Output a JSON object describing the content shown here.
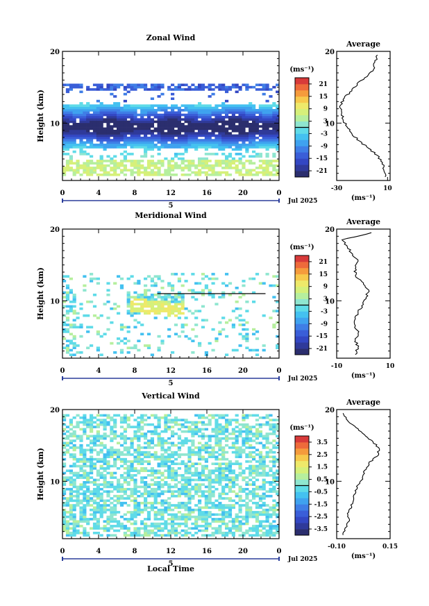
{
  "chart_data": [
    {
      "type": "heatmap",
      "title": "Zonal Wind",
      "xlabel": "",
      "ylabel": "Height (km)",
      "xticks": [
        "0",
        "4",
        "8",
        "12",
        "16",
        "20",
        "0"
      ],
      "yticks": [
        "10",
        "20"
      ],
      "xlim": [
        0,
        24
      ],
      "ylim": [
        2,
        20
      ],
      "date_bar_label": "5",
      "date_label": "Jul 2025",
      "colorbar": {
        "unit_label": "(ms⁻¹)",
        "ticks": [
          "21",
          "15",
          "9",
          "3",
          "-3",
          "-9",
          "-15",
          "-21"
        ],
        "range": [
          -24,
          24
        ]
      },
      "wind_structure": {
        "core_min_wind": -24,
        "core_height_km": [
          7.5,
          11.5
        ],
        "low_level_wind": [
          3,
          9
        ],
        "low_level_height_km": [
          2.5,
          5
        ]
      },
      "average_profile": {
        "title": "Average",
        "xlabel": "(ms⁻¹)",
        "xticks": [
          "-30",
          "10"
        ],
        "xlim": [
          -30,
          12
        ],
        "yticks": [
          "10",
          "20"
        ],
        "heights": [
          2.5,
          3.5,
          4.5,
          5.5,
          6.5,
          7.5,
          8.5,
          9.5,
          10.5,
          11.5,
          12.5,
          13.5,
          14.5,
          15.5,
          16.5,
          17.5,
          18.5,
          19.5
        ],
        "values": [
          8,
          7,
          6,
          2,
          -5,
          -12,
          -18,
          -22,
          -25,
          -26,
          -27,
          -24,
          -18,
          -14,
          -6,
          -1,
          0,
          2
        ]
      }
    },
    {
      "type": "heatmap",
      "title": "Meridional Wind",
      "xlabel": "",
      "ylabel": "Height (km)",
      "xticks": [
        "0",
        "4",
        "8",
        "12",
        "16",
        "20",
        "0"
      ],
      "yticks": [
        "10",
        "20"
      ],
      "xlim": [
        0,
        24
      ],
      "ylim": [
        2,
        20
      ],
      "date_bar_label": "5",
      "date_label": "Jul 2025",
      "colorbar": {
        "unit_label": "(ms⁻¹)",
        "ticks": [
          "21",
          "15",
          "9",
          "3",
          "-3",
          "-9",
          "-15",
          "-21"
        ],
        "range": [
          -24,
          24
        ]
      },
      "wind_structure": {
        "feature_max_wind": 12,
        "feature_time_h": [
          7.5,
          13.5
        ],
        "feature_height_km": [
          8.5,
          10.5
        ],
        "reference_line_height_km": 11
      },
      "average_profile": {
        "title": "Average",
        "xlabel": "(ms⁻¹)",
        "xticks": [
          "-10",
          "10"
        ],
        "xlim": [
          -10,
          10
        ],
        "yticks": [
          "10",
          "20"
        ],
        "heights": [
          2.5,
          3.5,
          4.5,
          5.5,
          6.5,
          7.5,
          8.5,
          9.5,
          10.5,
          11.5,
          12.5,
          13.5,
          14.5,
          15.5,
          16.5,
          17.5,
          18.5,
          19.5
        ],
        "values": [
          -3,
          -2,
          -3,
          -2,
          -3,
          -3,
          -2,
          0,
          1,
          2,
          0,
          -3,
          -3,
          -2,
          -4,
          -6,
          -8,
          3
        ]
      }
    },
    {
      "type": "heatmap",
      "title": "Vertical Wind",
      "xlabel": "Local Time",
      "ylabel": "Height (km)",
      "xticks": [
        "0",
        "4",
        "8",
        "12",
        "16",
        "20",
        "0"
      ],
      "yticks": [
        "10",
        "20"
      ],
      "xlim": [
        0,
        24
      ],
      "ylim": [
        2,
        20
      ],
      "date_bar_label": "5",
      "date_label": "Jul 2025",
      "colorbar": {
        "unit_label": "(ms⁻¹)",
        "ticks": [
          "3.5",
          "2.5",
          "1.5",
          "0.5",
          "-0.5",
          "-1.5",
          "-2.5",
          "-3.5"
        ],
        "range": [
          -4,
          4
        ]
      },
      "wind_structure": {
        "typical_value": 0
      },
      "average_profile": {
        "title": "Average",
        "xlabel": "(ms⁻¹)",
        "xticks": [
          "-0.10",
          "0.15"
        ],
        "xlim": [
          -0.1,
          0.15
        ],
        "yticks": [
          "10",
          "20"
        ],
        "heights": [
          2.5,
          3.5,
          4.5,
          5.5,
          6.5,
          7.5,
          8.5,
          9.5,
          10.5,
          11.5,
          12.5,
          13.5,
          14.5,
          15.5,
          16.5,
          17.5,
          18.5,
          19.5
        ],
        "values": [
          -0.07,
          -0.06,
          -0.04,
          -0.05,
          -0.03,
          -0.02,
          -0.01,
          0.0,
          0.02,
          0.03,
          0.05,
          0.09,
          0.1,
          0.07,
          0.03,
          -0.01,
          -0.05,
          -0.07
        ]
      }
    }
  ]
}
